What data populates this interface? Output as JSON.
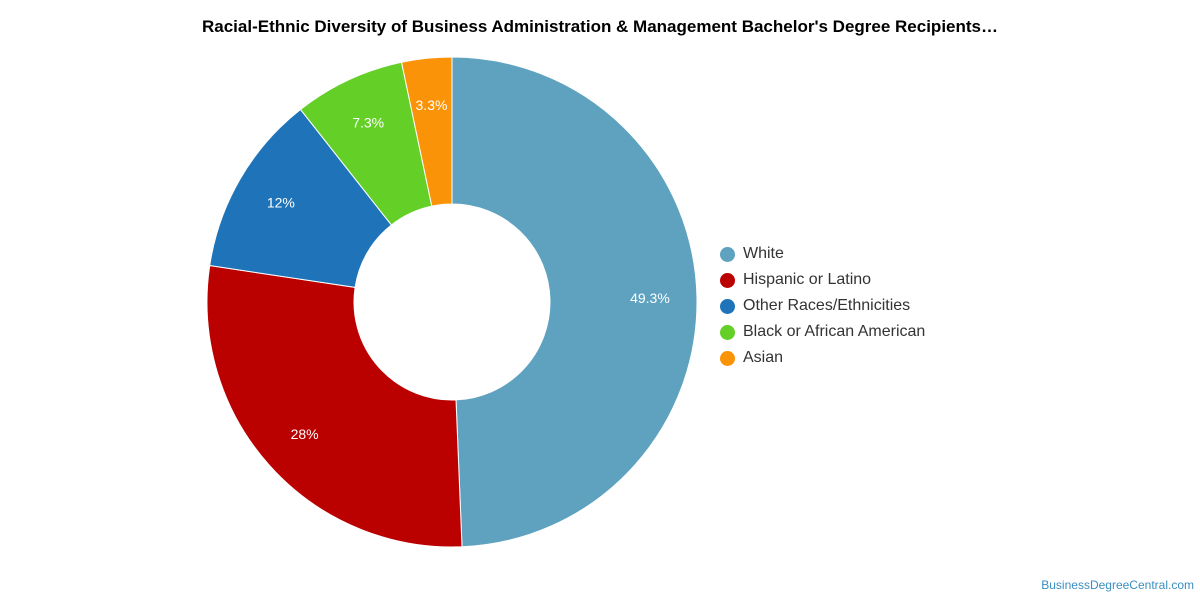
{
  "chart_data": {
    "type": "pie",
    "title": "Racial-Ethnic Diversity of Business Administration & Management Bachelor's Degree Recipients…",
    "donut": true,
    "legend_position": "right",
    "categories": [
      "White",
      "Hispanic or Latino",
      "Other Races/Ethnicities",
      "Black or African American",
      "Asian"
    ],
    "values": [
      49.3,
      28,
      12,
      7.3,
      3.3
    ],
    "labels": [
      "49.3%",
      "28%",
      "12%",
      "7.3%",
      "3.3%"
    ],
    "colors": [
      "#5ea2bf",
      "#bb0000",
      "#1e73b9",
      "#63cf27",
      "#fa9307"
    ]
  },
  "watermark": "BusinessDegreeCentral.com"
}
